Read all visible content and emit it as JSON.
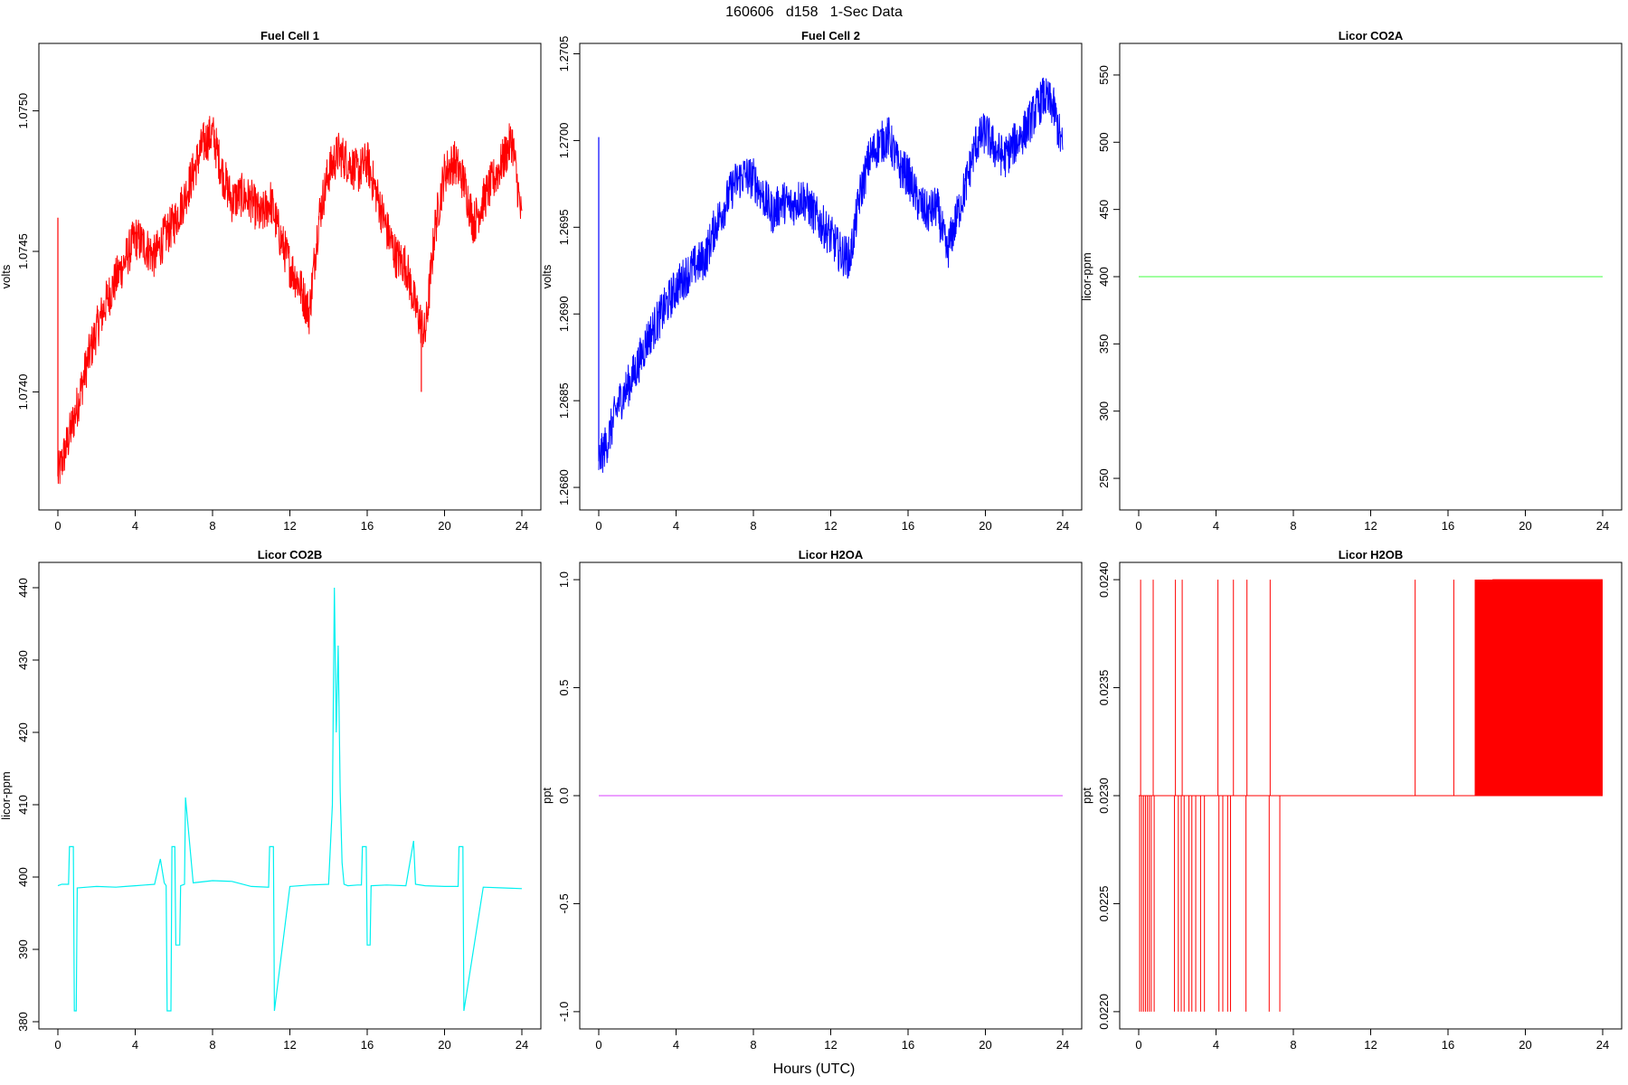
{
  "page": {
    "title": "160606   d158   1-Sec Data",
    "xlabel": "Hours (UTC)"
  },
  "chart_data": [
    {
      "type": "line",
      "title": "Fuel Cell 1",
      "ylabel": "volts",
      "color": "#ff0000",
      "xlim": [
        0,
        24
      ],
      "ylim": [
        1.07358,
        1.07524
      ],
      "xticks": [
        0,
        4,
        8,
        12,
        16,
        20,
        24
      ],
      "yticks": [
        1.074,
        1.0745,
        1.075
      ],
      "ytick_labels": [
        "1.0740",
        "1.0745",
        "1.0750"
      ],
      "band": 0.00016,
      "x": [
        0,
        0.5,
        1,
        1.5,
        2,
        2.5,
        3,
        3.5,
        4,
        4.5,
        5,
        5.5,
        6,
        6.5,
        7,
        7.5,
        8,
        8.5,
        9,
        9.5,
        10,
        10.5,
        11,
        11.5,
        12,
        12.5,
        13,
        13.5,
        14,
        14.5,
        15,
        15.5,
        16,
        16.5,
        17,
        17.5,
        18,
        18.5,
        19,
        19.5,
        20,
        20.5,
        21,
        21.5,
        22,
        22.5,
        23,
        23.5,
        24
      ],
      "y": [
        1.0737,
        1.07382,
        1.07395,
        1.0741,
        1.07422,
        1.07432,
        1.0744,
        1.07447,
        1.07455,
        1.07452,
        1.07448,
        1.07455,
        1.0746,
        1.07468,
        1.07478,
        1.07488,
        1.07492,
        1.07478,
        1.07468,
        1.0747,
        1.07468,
        1.07462,
        1.07468,
        1.07455,
        1.07445,
        1.07438,
        1.07428,
        1.07462,
        1.07478,
        1.07485,
        1.07482,
        1.07478,
        1.07482,
        1.0747,
        1.07458,
        1.07448,
        1.07445,
        1.0743,
        1.0742,
        1.07458,
        1.07478,
        1.07482,
        1.07475,
        1.0746,
        1.07468,
        1.07475,
        1.07482,
        1.0749,
        1.0746
      ],
      "annotations": [
        {
          "x": 0,
          "y": 1.07462
        },
        {
          "x": 18.8,
          "y": 1.074
        }
      ]
    },
    {
      "type": "line",
      "title": "Fuel Cell 2",
      "ylabel": "volts",
      "color": "#0000ff",
      "xlim": [
        0,
        24
      ],
      "ylim": [
        1.26787,
        1.27056
      ],
      "xticks": [
        0,
        4,
        8,
        12,
        16,
        20,
        24
      ],
      "yticks": [
        1.268,
        1.2685,
        1.269,
        1.2695,
        1.27,
        1.2705
      ],
      "ytick_labels": [
        "1.2680",
        "1.2685",
        "1.2690",
        "1.2695",
        "1.2700",
        "1.2705"
      ],
      "band": 0.00025,
      "x": [
        0,
        0.5,
        1,
        1.5,
        2,
        2.5,
        3,
        3.5,
        4,
        4.5,
        5,
        5.5,
        6,
        6.5,
        7,
        7.5,
        8,
        8.5,
        9,
        9.5,
        10,
        10.5,
        11,
        11.5,
        12,
        12.5,
        13,
        13.5,
        14,
        14.5,
        15,
        15.5,
        16,
        16.5,
        17,
        17.5,
        18,
        18.5,
        19,
        19.5,
        20,
        20.5,
        21,
        21.5,
        22,
        22.5,
        23,
        23.5,
        24
      ],
      "y": [
        1.26815,
        1.26828,
        1.26848,
        1.26858,
        1.2687,
        1.26885,
        1.26895,
        1.26905,
        1.26915,
        1.26922,
        1.26928,
        1.26932,
        1.2695,
        1.26962,
        1.26975,
        1.2698,
        1.26978,
        1.26968,
        1.26958,
        1.26965,
        1.26962,
        1.26968,
        1.2696,
        1.26952,
        1.26945,
        1.26935,
        1.26932,
        1.26968,
        1.2699,
        1.26998,
        1.27002,
        1.26985,
        1.2698,
        1.26965,
        1.26958,
        1.26962,
        1.26935,
        1.26955,
        1.26975,
        1.26998,
        1.27005,
        1.26995,
        1.2699,
        1.26998,
        1.27005,
        1.27015,
        1.27025,
        1.2702,
        1.26995
      ],
      "annotations": [
        {
          "x": 0,
          "y": 1.27002
        }
      ]
    },
    {
      "type": "line",
      "title": "Licor CO2A",
      "ylabel": "licor-ppm",
      "color": "#66ff66",
      "xlim": [
        0,
        24
      ],
      "ylim": [
        226.5,
        573.5
      ],
      "xticks": [
        0,
        4,
        8,
        12,
        16,
        20,
        24
      ],
      "yticks": [
        250,
        300,
        350,
        400,
        450,
        500,
        550
      ],
      "x": [
        0,
        24
      ],
      "y": [
        400,
        400
      ]
    },
    {
      "type": "line",
      "title": "Licor CO2B",
      "ylabel": "licor-ppm",
      "color": "#00f0f0",
      "xlim": [
        0,
        24
      ],
      "ylim": [
        379,
        443.5
      ],
      "xticks": [
        0,
        4,
        8,
        12,
        16,
        20,
        24
      ],
      "yticks": [
        380,
        390,
        400,
        410,
        420,
        430,
        440
      ],
      "x": [
        0,
        0.2,
        0.55,
        0.6,
        0.8,
        0.85,
        0.95,
        1.0,
        1.5,
        2,
        3,
        3.5,
        4,
        4.5,
        5,
        5.3,
        5.5,
        5.6,
        5.65,
        5.85,
        5.9,
        6.05,
        6.1,
        6.3,
        6.35,
        6.55,
        6.6,
        7,
        8,
        9,
        10,
        10.9,
        10.95,
        11.15,
        11.2,
        12,
        13,
        14,
        14.2,
        14.3,
        14.4,
        14.5,
        14.6,
        14.7,
        14.8,
        15,
        15.5,
        15.7,
        15.75,
        15.95,
        16,
        16.15,
        16.2,
        17,
        18,
        18.4,
        18.5,
        19,
        20,
        20.7,
        20.75,
        20.95,
        21.0,
        22,
        23,
        24
      ],
      "y": [
        398.8,
        399.0,
        399.0,
        404.2,
        404.2,
        381.5,
        381.5,
        398.5,
        398.6,
        398.7,
        398.6,
        398.7,
        398.8,
        398.9,
        399.0,
        402.5,
        399.2,
        398.8,
        381.5,
        381.5,
        404.2,
        404.2,
        390.6,
        390.6,
        398.8,
        399.0,
        411.0,
        399.2,
        399.5,
        399.4,
        398.7,
        398.6,
        404.2,
        404.2,
        381.5,
        398.7,
        398.9,
        399.0,
        410.0,
        440.0,
        420.0,
        432.0,
        412.0,
        402.0,
        399.0,
        398.8,
        398.9,
        398.9,
        404.2,
        404.2,
        390.6,
        390.6,
        398.8,
        398.9,
        398.8,
        405.0,
        399.0,
        398.8,
        398.7,
        398.7,
        404.2,
        404.2,
        381.5,
        398.6,
        398.5,
        398.4
      ]
    },
    {
      "type": "line",
      "title": "Licor H2OA",
      "ylabel": "ppt",
      "color": "#e066ff",
      "xlim": [
        0,
        24
      ],
      "ylim": [
        -1.08,
        1.08
      ],
      "xticks": [
        0,
        4,
        8,
        12,
        16,
        20,
        24
      ],
      "yticks": [
        -1,
        -0.5,
        0,
        0.5,
        1
      ],
      "ytick_labels": [
        "-1.0",
        "-0.5",
        "0.0",
        "0.5",
        "1.0"
      ],
      "x": [
        0,
        24
      ],
      "y": [
        0,
        0
      ]
    },
    {
      "type": "line",
      "title": "Licor H2OB",
      "ylabel": "ppt",
      "color": "#ff0000",
      "xlim": [
        0,
        24
      ],
      "ylim": [
        0.02192,
        0.02408
      ],
      "xticks": [
        0,
        4,
        8,
        12,
        16,
        20,
        24
      ],
      "yticks": [
        0.022,
        0.0225,
        0.023,
        0.0235,
        0.024
      ],
      "ytick_labels": [
        "0.0220",
        "0.0225",
        "0.0230",
        "0.0235",
        "0.0240"
      ],
      "baseline": 0.023,
      "high": 0.024,
      "low": 0.022,
      "up_spikes": [
        0.1,
        0.75,
        1.9,
        2.25,
        4.1,
        4.9,
        5.6,
        6.8,
        14.3,
        16.3,
        17.6,
        17.75,
        17.9,
        18.1
      ],
      "down_spikes": [
        0.05,
        0.15,
        0.25,
        0.35,
        0.45,
        0.55,
        0.65,
        0.8,
        1.85,
        2.05,
        2.2,
        2.35,
        2.6,
        2.75,
        2.95,
        3.2,
        3.4,
        4.15,
        4.35,
        4.6,
        4.75,
        5.55,
        6.75,
        7.3
      ],
      "dense_range": [
        18.3,
        24.0
      ]
    }
  ]
}
